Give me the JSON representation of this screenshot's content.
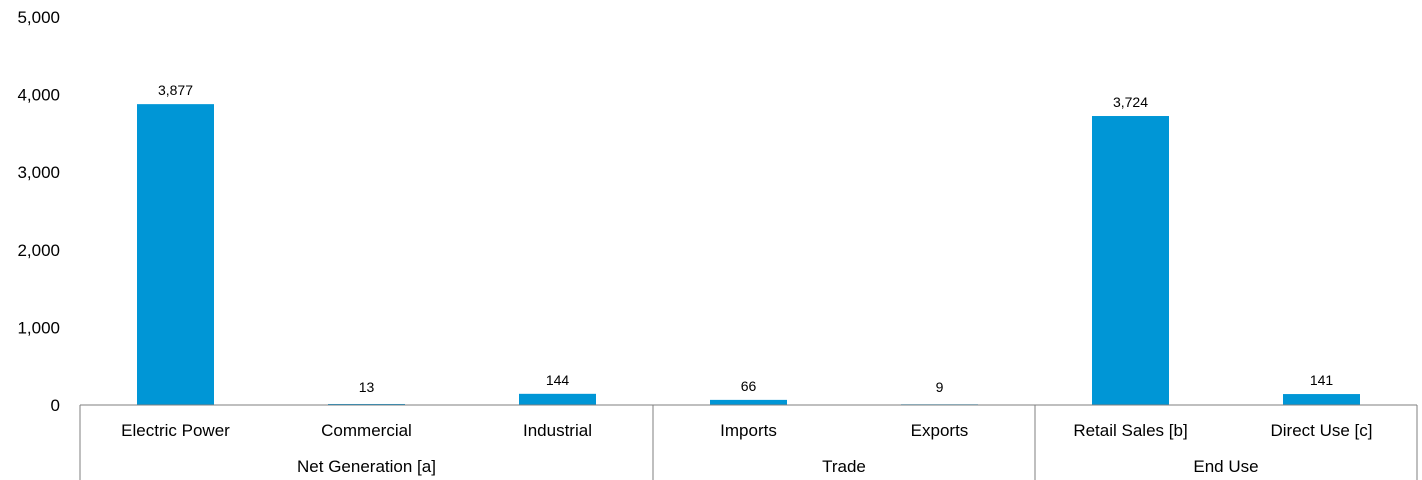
{
  "chart_data": {
    "type": "bar",
    "title": "",
    "xlabel": "",
    "ylabel": "",
    "ylim": [
      0,
      5000
    ],
    "yticks": [
      0,
      1000,
      2000,
      3000,
      4000,
      5000
    ],
    "ytick_labels": [
      "0",
      "1,000",
      "2,000",
      "3,000",
      "4,000",
      "5,000"
    ],
    "categories": [
      "Electric Power",
      "Commercial",
      "Industrial",
      "Imports",
      "Exports",
      "Retail Sales [b]",
      "Direct Use [c]"
    ],
    "values": [
      3877,
      13,
      144,
      66,
      9,
      3724,
      141
    ],
    "data_labels": [
      "3,877",
      "13",
      "144",
      "66",
      "9",
      "3,724",
      "141"
    ],
    "groups": [
      {
        "label": "Net Generation [a]",
        "count": 3
      },
      {
        "label": "Trade",
        "count": 2
      },
      {
        "label": "End Use",
        "count": 2
      }
    ],
    "bar_color": "#0096d6",
    "grid": false,
    "legend": "none"
  }
}
